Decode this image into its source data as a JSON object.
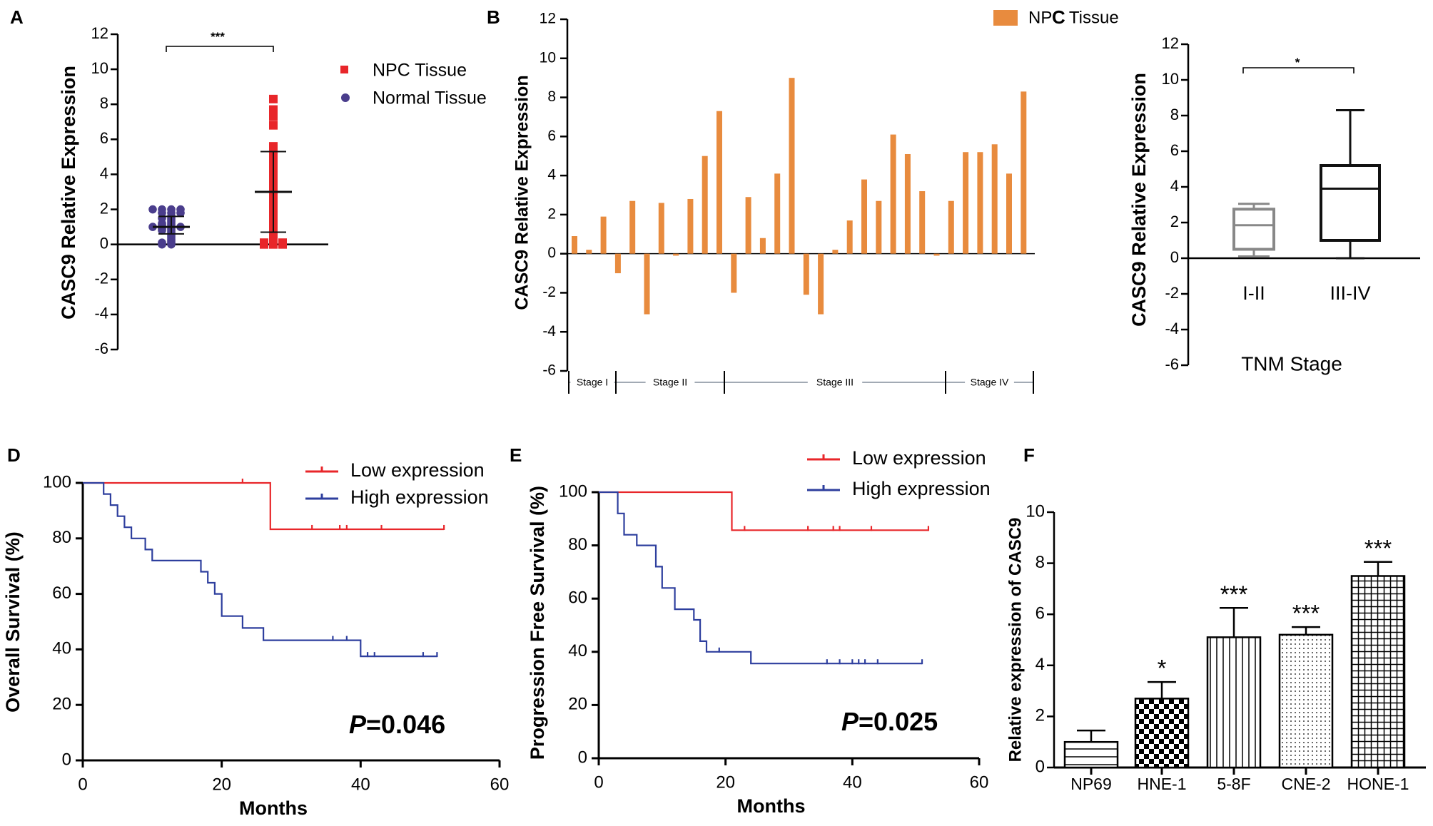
{
  "chart_data": [
    {
      "panel": "A",
      "type": "scatter",
      "ylabel": "CASC9 Relative  Expression",
      "ylim": [
        -6,
        12
      ],
      "yticks": [
        -6,
        -4,
        -2,
        0,
        2,
        4,
        6,
        8,
        10,
        12
      ],
      "significance": "***",
      "legend": [
        "NPC Tissue",
        "Normal Tissue"
      ],
      "series": [
        {
          "name": "Normal Tissue",
          "color": "#4a3d8c",
          "marker": "circle",
          "mean": 1.0,
          "sd_low": 0.6,
          "sd_high": 1.6,
          "values": [
            2.0,
            2.0,
            2.0,
            2.0,
            1.8,
            1.8,
            1.8,
            1.6,
            1.5,
            1.5,
            1.4,
            1.3,
            1.2,
            1.2,
            1.1,
            1.1,
            1.0,
            1.0,
            1.0,
            1.0,
            0.9,
            0.9,
            0.8,
            0.8,
            0.7,
            0.6,
            0.5,
            0.4,
            0.3,
            0.2,
            0.1,
            0.1,
            0.0,
            0.0
          ]
        },
        {
          "name": "NPC Tissue",
          "color": "#e8262a",
          "marker": "square",
          "mean": 3.0,
          "sd_low": 0.7,
          "sd_high": 5.3,
          "values": [
            8.3,
            7.7,
            7.3,
            6.8,
            5.6,
            5.5,
            5.3,
            5.2,
            4.9,
            4.5,
            4.4,
            4.1,
            3.9,
            3.7,
            3.6,
            3.5,
            3.4,
            3.2,
            2.9,
            2.8,
            2.4,
            2.2,
            1.9,
            1.5,
            1.3,
            1.0,
            0.6,
            0.5,
            0.3,
            0.1,
            0.1,
            0.1,
            0.0,
            0.0,
            0.0
          ]
        }
      ]
    },
    {
      "panel": "B",
      "type": "bar",
      "ylabel": "CASC9 Relative  Expression",
      "ylim": [
        -6,
        12
      ],
      "yticks": [
        -6,
        -4,
        -2,
        0,
        2,
        4,
        6,
        8,
        10,
        12
      ],
      "legend": [
        "NPC Tissue"
      ],
      "color": "#e88b3e",
      "values": [
        0.9,
        0.2,
        1.9,
        -1.0,
        2.7,
        -3.1,
        2.6,
        -0.1,
        2.8,
        5.0,
        7.3,
        -2.0,
        2.9,
        0.8,
        4.1,
        9.0,
        -2.1,
        -3.1,
        0.2,
        1.7,
        3.8,
        2.7,
        6.1,
        5.1,
        3.2,
        -0.1,
        2.7,
        5.2,
        5.2,
        5.6,
        4.1,
        8.3
      ],
      "stages": [
        {
          "label": "Stage I",
          "start": 0,
          "end": 3
        },
        {
          "label": "Stage II",
          "start": 3,
          "end": 11
        },
        {
          "label": "Stage III",
          "start": 11,
          "end": 27
        },
        {
          "label": "Stage IV",
          "start": 27,
          "end": 32
        }
      ]
    },
    {
      "panel": "C",
      "type": "box",
      "ylabel": "CASC9 Relative  Expression",
      "xlabel": "TNM  Stage",
      "ylim": [
        -6,
        12
      ],
      "yticks": [
        -6,
        -4,
        -2,
        0,
        2,
        4,
        6,
        8,
        10,
        12
      ],
      "significance": "*",
      "categories": [
        "I-II",
        "III-IV"
      ],
      "boxes": [
        {
          "min": 0.1,
          "q1": 0.5,
          "median": 1.85,
          "q3": 2.75,
          "max": 3.05,
          "color": "#888888"
        },
        {
          "min": 0.0,
          "q1": 1.0,
          "median": 3.9,
          "q3": 5.2,
          "max": 8.3,
          "color": "#111111"
        }
      ]
    },
    {
      "panel": "D",
      "type": "line",
      "subtype": "kaplan-meier",
      "ylabel": "Overall Survival (%)",
      "xlabel": "Months",
      "xlim": [
        0,
        60
      ],
      "ylim": [
        0,
        100
      ],
      "xticks": [
        0,
        20,
        40,
        60
      ],
      "yticks": [
        0,
        20,
        40,
        60,
        80,
        100
      ],
      "p_prefix": "P",
      "p_value": "=0.046",
      "series": [
        {
          "name": "Low expression",
          "color": "#e8262a",
          "steps": [
            [
              0,
              100
            ],
            [
              27,
              100
            ],
            [
              27,
              83.3
            ],
            [
              52,
              83.3
            ]
          ],
          "censors": [
            [
              23,
              100
            ],
            [
              33,
              83.3
            ],
            [
              37,
              83.3
            ],
            [
              38,
              83.3
            ],
            [
              43,
              83.3
            ],
            [
              52,
              83.3
            ]
          ]
        },
        {
          "name": "High expression",
          "color": "#2e3f9e",
          "steps": [
            [
              0,
              100
            ],
            [
              3,
              100
            ],
            [
              3,
              96
            ],
            [
              4,
              96
            ],
            [
              4,
              92
            ],
            [
              5,
              92
            ],
            [
              5,
              88
            ],
            [
              6,
              88
            ],
            [
              6,
              84
            ],
            [
              7,
              84
            ],
            [
              7,
              80
            ],
            [
              9,
              80
            ],
            [
              9,
              76
            ],
            [
              10,
              76
            ],
            [
              10,
              72
            ],
            [
              17,
              72
            ],
            [
              17,
              68
            ],
            [
              18,
              68
            ],
            [
              18,
              64
            ],
            [
              19,
              64
            ],
            [
              19,
              60
            ],
            [
              20,
              60
            ],
            [
              20,
              52
            ],
            [
              23,
              52
            ],
            [
              23,
              47.7
            ],
            [
              26,
              47.7
            ],
            [
              26,
              43.3
            ],
            [
              40,
              43.3
            ],
            [
              40,
              37.5
            ],
            [
              51,
              37.5
            ]
          ],
          "censors": [
            [
              36,
              43.3
            ],
            [
              38,
              43.3
            ],
            [
              41,
              37.5
            ],
            [
              42,
              37.5
            ],
            [
              49,
              37.5
            ],
            [
              51,
              37.5
            ]
          ]
        }
      ]
    },
    {
      "panel": "E",
      "type": "line",
      "subtype": "kaplan-meier",
      "ylabel": "Progression Free Survival (%)",
      "xlabel": "Months",
      "xlim": [
        0,
        60
      ],
      "ylim": [
        0,
        100
      ],
      "xticks": [
        0,
        20,
        40,
        60
      ],
      "yticks": [
        0,
        20,
        40,
        60,
        80,
        100
      ],
      "p_prefix": "P",
      "p_value": "=0.025",
      "series": [
        {
          "name": "Low expression",
          "color": "#e8262a",
          "steps": [
            [
              0,
              100
            ],
            [
              21,
              100
            ],
            [
              21,
              85.7
            ],
            [
              52,
              85.7
            ]
          ],
          "censors": [
            [
              23,
              85.7
            ],
            [
              33,
              85.7
            ],
            [
              37,
              85.7
            ],
            [
              38,
              85.7
            ],
            [
              43,
              85.7
            ],
            [
              52,
              85.7
            ]
          ]
        },
        {
          "name": "High expression",
          "color": "#2e3f9e",
          "steps": [
            [
              0,
              100
            ],
            [
              3,
              100
            ],
            [
              3,
              92
            ],
            [
              4,
              92
            ],
            [
              4,
              84
            ],
            [
              6,
              84
            ],
            [
              6,
              80
            ],
            [
              9,
              80
            ],
            [
              9,
              72
            ],
            [
              10,
              72
            ],
            [
              10,
              64
            ],
            [
              12,
              64
            ],
            [
              12,
              56
            ],
            [
              15,
              56
            ],
            [
              15,
              52
            ],
            [
              16,
              52
            ],
            [
              16,
              44
            ],
            [
              17,
              44
            ],
            [
              17,
              40
            ],
            [
              24,
              40
            ],
            [
              24,
              35.6
            ],
            [
              51,
              35.6
            ]
          ],
          "censors": [
            [
              19,
              40
            ],
            [
              36,
              35.6
            ],
            [
              38,
              35.6
            ],
            [
              40,
              35.6
            ],
            [
              41,
              35.6
            ],
            [
              42,
              35.6
            ],
            [
              44,
              35.6
            ],
            [
              51,
              35.6
            ]
          ]
        }
      ]
    },
    {
      "panel": "F",
      "type": "bar",
      "ylabel": "Relative expression of CASC9",
      "ylim": [
        0,
        10
      ],
      "yticks": [
        0,
        2,
        4,
        6,
        8,
        10
      ],
      "categories": [
        "NP69",
        "HNE-1",
        "5-8F",
        "CNE-2",
        "HONE-1"
      ],
      "values": [
        1.0,
        2.7,
        5.1,
        5.2,
        7.5
      ],
      "errors": [
        0.45,
        0.65,
        1.15,
        0.3,
        0.55
      ],
      "significance": [
        "",
        "*",
        "***",
        "***",
        "***"
      ],
      "patterns": [
        "horizontal-lines",
        "checkerboard",
        "vertical-lines",
        "dots",
        "grid"
      ]
    }
  ],
  "panel_labels": [
    "A",
    "B",
    "C",
    "D",
    "E",
    "F"
  ]
}
